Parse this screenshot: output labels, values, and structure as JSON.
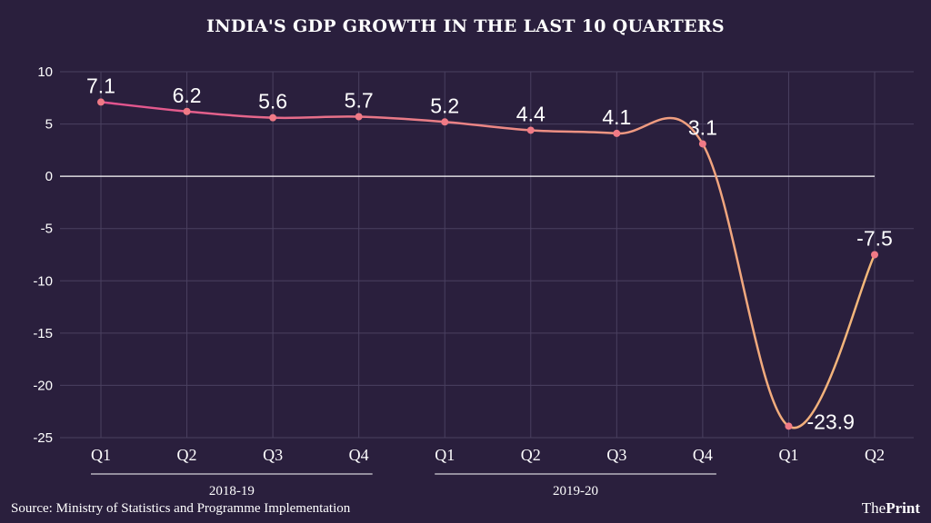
{
  "chart_data": {
    "type": "line",
    "title": "INDIA'S GDP GROWTH IN THE LAST 10 QUARTERS",
    "categories": [
      "Q1",
      "Q2",
      "Q3",
      "Q4",
      "Q1",
      "Q2",
      "Q3",
      "Q4",
      "Q1",
      "Q2"
    ],
    "groups": [
      {
        "label": "2018-19",
        "from": 0,
        "to": 3
      },
      {
        "label": "2019-20",
        "from": 4,
        "to": 7
      }
    ],
    "values": [
      7.1,
      6.2,
      5.6,
      5.7,
      5.2,
      4.4,
      4.1,
      3.1,
      -23.9,
      -7.5
    ],
    "data_labels": [
      "7.1",
      "6.2",
      "5.6",
      "5.7",
      "5.2",
      "4.4",
      "4.1",
      "3.1",
      "-23.9",
      "-7.5"
    ],
    "ylim": [
      -25,
      10
    ],
    "yticks": [
      10,
      5,
      0,
      -5,
      -10,
      -15,
      -20,
      -25
    ],
    "xlabel": "",
    "ylabel": "",
    "grid": true,
    "colors": {
      "background": "#2a1f3d",
      "grid": "#4a4060",
      "line_start": "#e2528f",
      "line_end": "#f4b97a",
      "point": "#f07a86",
      "zero_line": "#ffffff"
    }
  },
  "source": "Source: Ministry of Statistics and Programme Implementation",
  "brand": {
    "part1": "The",
    "part2": "Print"
  }
}
